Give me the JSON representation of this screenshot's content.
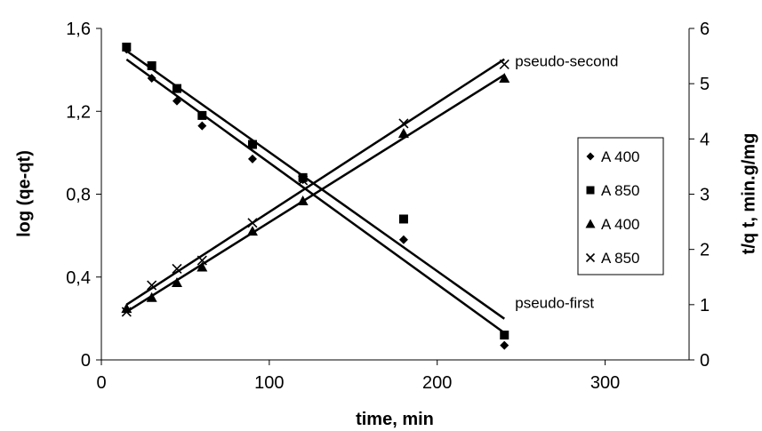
{
  "chart_data": {
    "type": "scatter",
    "x_label": "time, min",
    "y_label": "log (qe-qt)",
    "y2_label": "t/q t, min.g/mg",
    "xlim": [
      0,
      350
    ],
    "xticks": [
      0,
      100,
      200,
      300
    ],
    "ylim": [
      0,
      1.6
    ],
    "yticks": [
      0,
      {
        "value": 0.4,
        "label": "0,4"
      },
      {
        "value": 0.8,
        "label": "0,8"
      },
      {
        "value": 1.2,
        "label": "1,2"
      },
      {
        "value": 1.6,
        "label": "1,6"
      }
    ],
    "y2lim": [
      0,
      6
    ],
    "y2ticks": [
      0,
      1,
      2,
      3,
      4,
      5,
      6
    ],
    "trendline": true,
    "legend": "right",
    "series": [
      {
        "name": "A 400",
        "marker": "diamond",
        "color": "#000000",
        "x": [
          15,
          30,
          45,
          60,
          90,
          120,
          180,
          240
        ],
        "values": [
          1.5,
          1.36,
          1.25,
          1.13,
          0.97,
          0.87,
          0.58,
          0.07
        ]
      },
      {
        "name": "A 850",
        "marker": "square",
        "color": "#000000",
        "x": [
          15,
          30,
          45,
          60,
          90,
          120,
          180,
          240
        ],
        "values": [
          1.51,
          1.42,
          1.31,
          1.18,
          1.04,
          0.88,
          0.68,
          0.12
        ]
      },
      {
        "name": "A 400",
        "marker": "triangle",
        "color": "#000000",
        "axis": "y2",
        "x": [
          15,
          30,
          45,
          60,
          90,
          120,
          180,
          240
        ],
        "values": [
          0.93,
          1.13,
          1.4,
          1.68,
          2.33,
          2.88,
          4.1,
          5.1
        ]
      },
      {
        "name": "A 850",
        "marker": "x",
        "color": "#000000",
        "axis": "y2",
        "x": [
          15,
          30,
          45,
          60,
          90,
          120,
          180,
          240
        ],
        "values": [
          0.87,
          1.35,
          1.65,
          1.8,
          2.48,
          3.25,
          4.28,
          5.35
        ]
      }
    ],
    "annotations": [
      "pseudo-second",
      "pseudo-first"
    ]
  }
}
